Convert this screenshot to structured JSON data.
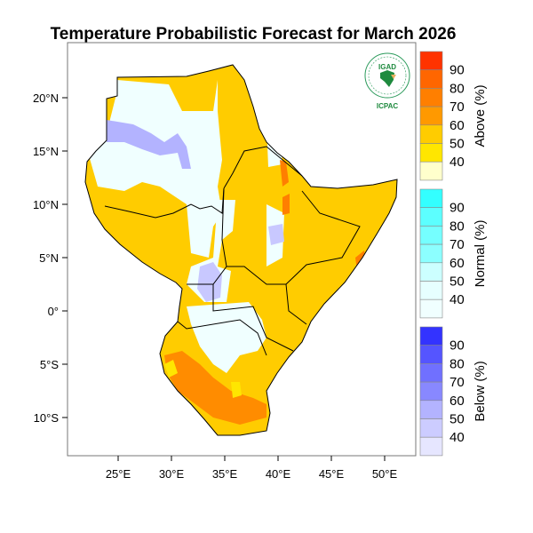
{
  "title": "Temperature Probabilistic Forecast for March 2026",
  "axes": {
    "lat_ticks": [
      "20°N",
      "15°N",
      "10°N",
      "5°N",
      "0°",
      "5°S",
      "10°S"
    ],
    "lon_ticks": [
      "25°E",
      "30°E",
      "35°E",
      "40°E",
      "45°E",
      "50°E"
    ]
  },
  "logo": {
    "top_text": "IGAD",
    "bottom_text": "ICPAC"
  },
  "legends": [
    {
      "title": "Above (%)",
      "labels": [
        "90",
        "80",
        "70",
        "60",
        "50",
        "40"
      ],
      "colors": [
        "#FF3300",
        "#FF6600",
        "#FF7F00",
        "#FF9900",
        "#FFCC00",
        "#FFE600",
        "#FFFFCC"
      ]
    },
    {
      "title": "Normal (%)",
      "labels": [
        "90",
        "80",
        "70",
        "60",
        "50",
        "40"
      ],
      "colors": [
        "#33FFFF",
        "#5CFFFF",
        "#75FFFF",
        "#8CFFFF",
        "#CCFFFF",
        "#E6FFFF",
        "#F0FFFF"
      ]
    },
    {
      "title": "Below (%)",
      "labels": [
        "90",
        "80",
        "70",
        "60",
        "50",
        "40"
      ],
      "colors": [
        "#3333FF",
        "#5555FF",
        "#7070FF",
        "#8888FF",
        "#B3B3FF",
        "#CCCCFF",
        "#E6E6FF"
      ]
    }
  ],
  "map_colors": {
    "above": "#FFCC00",
    "above_high": "#FF7F00",
    "normal": "#F0FFFF",
    "below": "#B3B3FF",
    "border": "#000000"
  }
}
